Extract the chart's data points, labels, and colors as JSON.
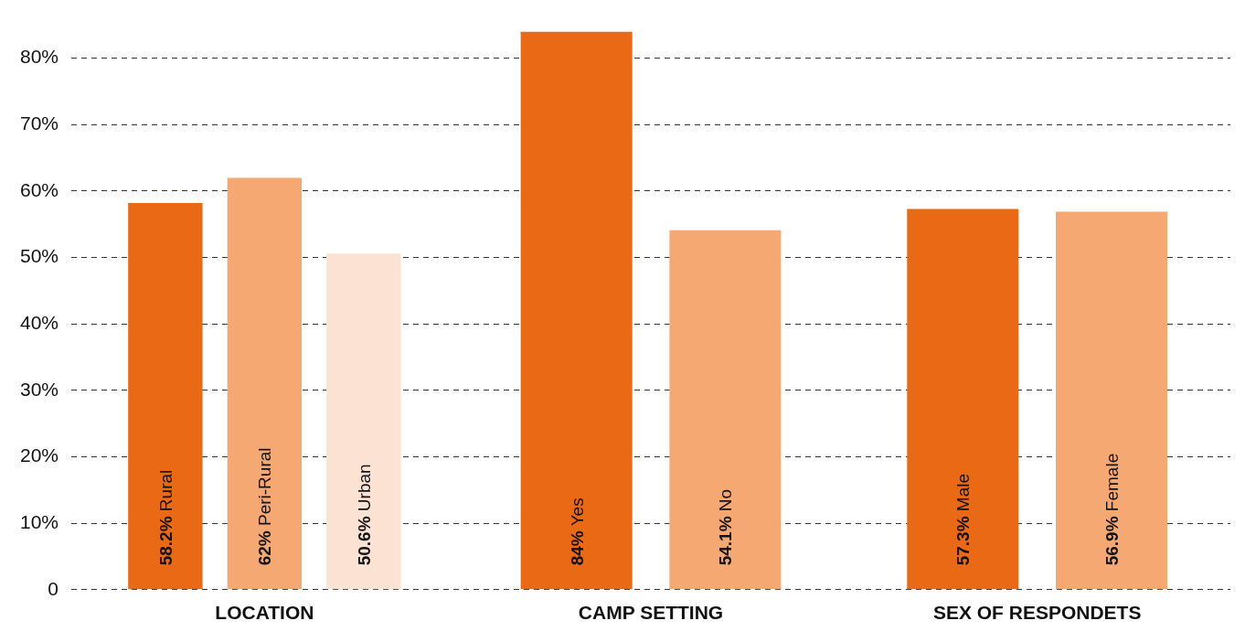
{
  "chart_data": {
    "type": "bar",
    "categories": [
      "LOCATION",
      "CAMP SETTING",
      "SEX OF RESPONDETS"
    ],
    "series": [
      {
        "color": "#e96914",
        "values": [
          58.2,
          84,
          57.3
        ],
        "value_labels": [
          "58.2% Rural",
          "84% Yes",
          "57.3% Male"
        ]
      },
      {
        "color": "#f5a871",
        "values": [
          62,
          54.1,
          56.9
        ],
        "value_labels": [
          "62% Peri-Rural",
          "54.1% No",
          "56.9% Female"
        ]
      },
      {
        "color": "#fce2d2",
        "values": [
          50.6,
          null,
          null
        ],
        "value_labels": [
          "50.6% Urban",
          null,
          null
        ]
      }
    ],
    "ylim": [
      0,
      84
    ],
    "yticks": [
      0,
      {
        "value": 10,
        "label": "10%"
      },
      {
        "value": 20,
        "label": "20%"
      },
      {
        "value": 30,
        "label": "30%"
      },
      {
        "value": 40,
        "label": "40%"
      },
      {
        "value": 50,
        "label": "50%"
      },
      {
        "value": 60,
        "label": "60%"
      },
      {
        "value": 70,
        "label": "70%"
      },
      {
        "value": 80,
        "label": "80%"
      }
    ],
    "grid": "y",
    "line_style": "dashed",
    "legend": false
  }
}
